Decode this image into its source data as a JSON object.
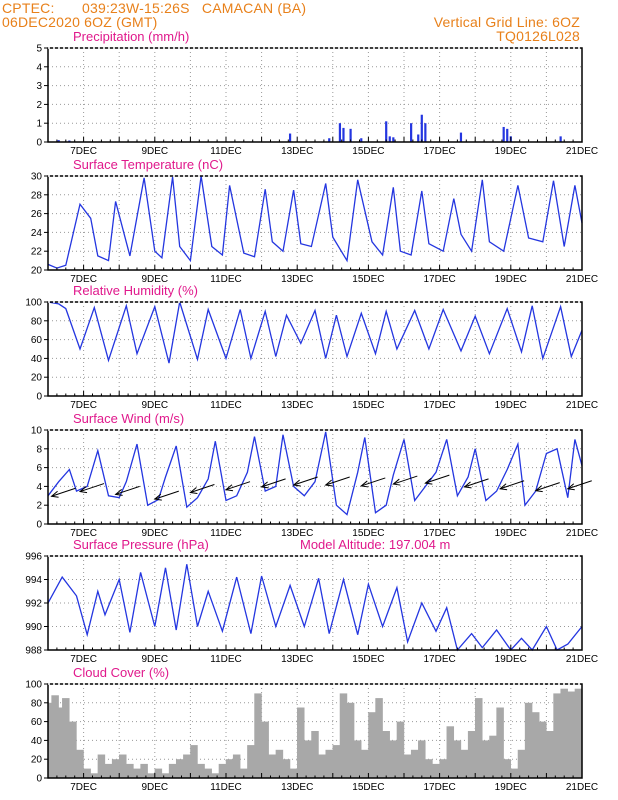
{
  "header": {
    "source": "CPTEC:",
    "location": "039:23W-15:26S   CAMACAN (BA)",
    "run": "06DEC2020 6OZ (GMT)",
    "grid_note": "Vertical Grid Line: 6OZ",
    "code": "TQ0126L028"
  },
  "x_labels": [
    "7DEC",
    "9DEC",
    "11DEC",
    "13DEC",
    "15DEC",
    "17DEC",
    "19DEC",
    "21DEC"
  ],
  "model_altitude": "Model Altitude: 197.004 m",
  "colors": {
    "header": "#e8801a",
    "title": "#e0198c",
    "line": "#2436e0",
    "cloud": "#a8a8a8",
    "grid": "#999999"
  },
  "chart_data": [
    {
      "type": "bar",
      "title": "Precipitation (mm/h)",
      "ylim": [
        0,
        5
      ],
      "yticks": [
        0,
        1,
        2,
        3,
        4,
        5
      ],
      "x_unit": "days since 6DEC2020 00Z",
      "x": [
        0.3,
        0.6,
        6.8,
        7.9,
        8.2,
        8.3,
        8.5,
        8.8,
        9.5,
        9.6,
        9.7,
        10.2,
        10.4,
        10.5,
        10.6,
        11.6,
        12.8,
        12.9,
        13.0,
        14.4
      ],
      "values": [
        0.1,
        0.08,
        0.45,
        0.2,
        1.0,
        0.75,
        0.7,
        0.2,
        1.1,
        0.3,
        0.25,
        1.0,
        0.4,
        1.45,
        1.0,
        0.5,
        0.8,
        0.7,
        0.3,
        0.3
      ]
    },
    {
      "type": "line",
      "title": "Surface Temperature (nC)",
      "ylim": [
        20,
        30
      ],
      "yticks": [
        20,
        22,
        24,
        26,
        28,
        30
      ],
      "x_unit": "days since 6DEC2020 00Z",
      "x": [
        0.0,
        0.25,
        0.5,
        0.9,
        1.2,
        1.4,
        1.7,
        1.9,
        2.3,
        2.7,
        3.0,
        3.2,
        3.5,
        3.7,
        4.0,
        4.3,
        4.6,
        4.9,
        5.1,
        5.5,
        5.8,
        6.1,
        6.3,
        6.6,
        6.9,
        7.1,
        7.4,
        7.8,
        8.0,
        8.4,
        8.7,
        9.1,
        9.4,
        9.7,
        9.9,
        10.2,
        10.5,
        10.7,
        11.1,
        11.4,
        11.6,
        11.9,
        12.2,
        12.4,
        12.8,
        13.2,
        13.5,
        13.9,
        14.2,
        14.5,
        14.8,
        15.0
      ],
      "values": [
        20.6,
        20.2,
        20.5,
        27.0,
        25.5,
        21.5,
        21.0,
        27.3,
        21.5,
        29.8,
        22.0,
        21.3,
        29.9,
        22.5,
        21.0,
        30.0,
        22.5,
        21.6,
        29.0,
        21.8,
        21.4,
        28.6,
        23.0,
        22.0,
        28.5,
        22.8,
        22.5,
        29.2,
        23.5,
        21.0,
        29.6,
        23.0,
        21.6,
        28.8,
        22.0,
        21.6,
        28.4,
        22.8,
        22.0,
        27.6,
        23.8,
        22.0,
        29.6,
        23.0,
        22.0,
        29.0,
        23.4,
        23.0,
        29.5,
        22.5,
        29.0,
        25.0
      ]
    },
    {
      "type": "line",
      "title": "Relative Humidity (%)",
      "ylim": [
        0,
        100
      ],
      "yticks": [
        0,
        20,
        40,
        60,
        80,
        100
      ],
      "x_unit": "days since 6DEC2020 00Z",
      "x": [
        0.0,
        0.3,
        0.5,
        0.9,
        1.3,
        1.7,
        2.2,
        2.5,
        3.0,
        3.4,
        3.7,
        4.2,
        4.5,
        5.0,
        5.4,
        5.7,
        6.1,
        6.4,
        6.7,
        7.1,
        7.5,
        7.8,
        8.1,
        8.4,
        8.8,
        9.2,
        9.5,
        9.8,
        10.3,
        10.7,
        11.1,
        11.6,
        12.0,
        12.4,
        12.9,
        13.3,
        13.6,
        13.9,
        14.4,
        14.7,
        15.0
      ],
      "values": [
        100,
        98,
        93,
        50,
        94,
        38,
        96,
        45,
        95,
        35,
        100,
        39,
        92,
        40,
        92,
        40,
        90,
        42,
        86,
        56,
        91,
        40,
        86,
        42,
        88,
        45,
        90,
        50,
        91,
        50,
        92,
        48,
        85,
        45,
        93,
        47,
        96,
        40,
        95,
        42,
        70
      ]
    },
    {
      "type": "line",
      "title": "Surface Wind (m/s)",
      "ylim": [
        0,
        10
      ],
      "yticks": [
        0,
        2,
        4,
        6,
        8,
        10
      ],
      "x_unit": "days since 6DEC2020 00Z",
      "x": [
        0.0,
        0.3,
        0.6,
        0.8,
        1.1,
        1.4,
        1.7,
        2.0,
        2.2,
        2.5,
        2.8,
        3.1,
        3.3,
        3.6,
        3.9,
        4.2,
        4.5,
        4.7,
        5.0,
        5.3,
        5.6,
        5.8,
        6.1,
        6.4,
        6.6,
        6.9,
        7.2,
        7.5,
        7.8,
        8.1,
        8.4,
        8.7,
        8.9,
        9.2,
        9.5,
        9.7,
        10.0,
        10.3,
        10.6,
        10.9,
        11.2,
        11.5,
        11.8,
        12.0,
        12.3,
        12.6,
        12.9,
        13.2,
        13.4,
        13.7,
        14.0,
        14.3,
        14.6,
        14.8,
        15.0
      ],
      "values": [
        3.0,
        4.5,
        5.8,
        3.5,
        4.0,
        7.8,
        3.0,
        2.8,
        4.5,
        8.5,
        2.0,
        2.6,
        5.0,
        8.3,
        1.8,
        2.8,
        4.8,
        8.8,
        2.5,
        3.0,
        5.5,
        9.3,
        3.5,
        4.0,
        9.5,
        4.0,
        3.0,
        4.5,
        9.8,
        2.0,
        1.0,
        5.5,
        9.2,
        1.2,
        2.0,
        5.2,
        9.0,
        2.5,
        4.0,
        5.5,
        9.0,
        3.0,
        5.0,
        8.0,
        2.5,
        3.5,
        5.8,
        8.5,
        2.0,
        3.5,
        7.5,
        8.0,
        2.8,
        9.0,
        6.2
      ],
      "arrows_x": [
        0.1,
        0.9,
        1.9,
        3.0,
        4.0,
        5.0,
        6.0,
        6.9,
        7.8,
        8.8,
        9.7,
        10.6,
        11.7,
        12.7,
        13.7,
        14.6
      ],
      "arrows_y": [
        3.8,
        4.3,
        4.0,
        3.5,
        4.2,
        4.5,
        4.8,
        5.0,
        5.0,
        4.9,
        5.1,
        5.2,
        4.8,
        4.6,
        4.4,
        4.6
      ]
    },
    {
      "type": "line",
      "title": "Surface Pressure (hPa)",
      "ylim": [
        988,
        996
      ],
      "yticks": [
        988,
        990,
        992,
        994,
        996
      ],
      "x_unit": "days since 6DEC2020 00Z",
      "x": [
        0.0,
        0.4,
        0.8,
        1.1,
        1.4,
        1.6,
        2.0,
        2.3,
        2.6,
        3.0,
        3.3,
        3.6,
        3.9,
        4.2,
        4.5,
        4.9,
        5.3,
        5.7,
        6.0,
        6.4,
        6.8,
        7.2,
        7.6,
        7.9,
        8.3,
        8.7,
        9.0,
        9.4,
        9.8,
        10.1,
        10.5,
        10.9,
        11.2,
        11.5,
        11.9,
        12.2,
        12.6,
        13.0,
        13.3,
        13.6,
        14.0,
        14.3,
        14.6,
        15.0
      ],
      "values": [
        992,
        994.2,
        992.6,
        989.3,
        993,
        991,
        994,
        989.5,
        994.6,
        990,
        995,
        989.7,
        995.3,
        990,
        993,
        989.6,
        994.2,
        989.4,
        994.3,
        990,
        993.5,
        990,
        994.1,
        989.4,
        994,
        989.3,
        993.6,
        990,
        993.3,
        988.7,
        992,
        989.6,
        991.6,
        988.0,
        989.4,
        988.2,
        989.7,
        988.0,
        989.0,
        988.0,
        990,
        988.0,
        988.5,
        990
      ]
    },
    {
      "type": "bar",
      "title": "Cloud Cover (%)",
      "ylim": [
        0,
        100
      ],
      "yticks": [
        0,
        20,
        40,
        60,
        80,
        100
      ],
      "x_unit": "days since 6DEC2020 00Z",
      "x": [
        0.1,
        0.2,
        0.3,
        0.5,
        0.7,
        0.9,
        1.1,
        1.3,
        1.5,
        1.7,
        1.9,
        2.1,
        2.3,
        2.5,
        2.7,
        2.9,
        3.1,
        3.3,
        3.5,
        3.7,
        3.9,
        4.1,
        4.3,
        4.5,
        4.7,
        4.9,
        5.1,
        5.3,
        5.5,
        5.7,
        5.9,
        6.1,
        6.3,
        6.5,
        6.7,
        6.9,
        7.1,
        7.3,
        7.5,
        7.7,
        7.9,
        8.1,
        8.3,
        8.5,
        8.7,
        8.9,
        9.1,
        9.3,
        9.5,
        9.7,
        9.9,
        10.1,
        10.3,
        10.5,
        10.7,
        10.9,
        11.1,
        11.3,
        11.5,
        11.7,
        11.9,
        12.1,
        12.3,
        12.5,
        12.7,
        12.9,
        13.1,
        13.3,
        13.5,
        13.7,
        13.9,
        14.1,
        14.3,
        14.5,
        14.7,
        14.9
      ],
      "values": [
        80,
        88,
        75,
        85,
        60,
        30,
        10,
        5,
        25,
        15,
        20,
        25,
        15,
        10,
        15,
        5,
        10,
        5,
        15,
        20,
        25,
        35,
        15,
        10,
        5,
        15,
        20,
        25,
        10,
        35,
        90,
        60,
        25,
        30,
        20,
        10,
        75,
        40,
        50,
        25,
        30,
        35,
        90,
        80,
        40,
        30,
        70,
        85,
        50,
        40,
        60,
        25,
        30,
        40,
        20,
        15,
        20,
        55,
        40,
        30,
        50,
        85,
        40,
        45,
        75,
        20,
        10,
        30,
        80,
        70,
        60,
        50,
        90,
        95,
        92,
        95
      ]
    }
  ]
}
